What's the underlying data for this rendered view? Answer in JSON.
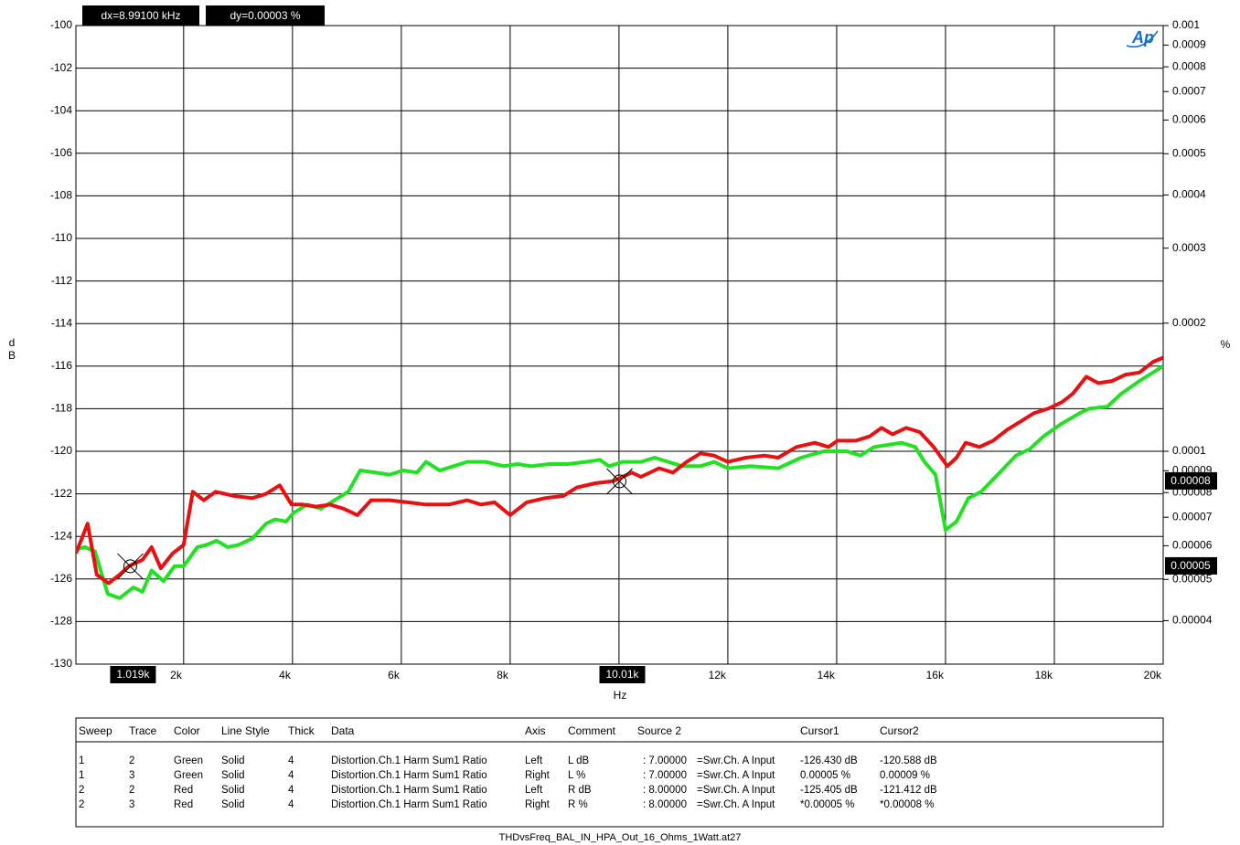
{
  "chart_data": {
    "type": "line",
    "xlabel": "Hz",
    "ylabel": "dB",
    "y2label": "%",
    "logo": "Ap",
    "xlim": [
      20,
      20000
    ],
    "ylim": [
      -130,
      -100
    ],
    "y2lim": [
      3.16228e-05,
      0.001
    ],
    "y2log": true,
    "grid": true,
    "xticks": [
      {
        "value": 2000,
        "label": "2k"
      },
      {
        "value": 4000,
        "label": "4k"
      },
      {
        "value": 6000,
        "label": "6k"
      },
      {
        "value": 8000,
        "label": "8k"
      },
      {
        "value": 10000,
        "label": "10k"
      },
      {
        "value": 12000,
        "label": "12k"
      },
      {
        "value": 14000,
        "label": "14k"
      },
      {
        "value": 16000,
        "label": "16k"
      },
      {
        "value": 18000,
        "label": "18k"
      },
      {
        "value": 20000,
        "label": "20k"
      }
    ],
    "yticks": [
      -130,
      -128,
      -126,
      -124,
      -122,
      -120,
      -118,
      -116,
      -114,
      -112,
      -110,
      -108,
      -106,
      -104,
      -102,
      -100
    ],
    "y2ticks": [
      0.001,
      0.0009,
      0.0008,
      0.0007,
      0.0006,
      0.0005,
      0.0004,
      0.0003,
      0.0002,
      0.0001,
      9e-05,
      8e-05,
      7e-05,
      6e-05,
      5e-05,
      4e-05
    ],
    "series": [
      {
        "color": "#22e022",
        "x": [
          20,
          185,
          370,
          605,
          824,
          1076,
          1244,
          1412,
          1630,
          1832,
          2000,
          2252,
          2420,
          2605,
          2807,
          3008,
          3261,
          3513,
          3681,
          3882,
          4017,
          4269,
          4521,
          4773,
          5025,
          5244,
          5529,
          5782,
          6034,
          6286,
          6454,
          6706,
          6958,
          7210,
          7546,
          7882,
          8134,
          8387,
          8723,
          9059,
          9395,
          9647,
          9815,
          10067,
          10403,
          10655,
          10908,
          11160,
          11496,
          11748,
          12000,
          12420,
          12924,
          13345,
          13765,
          14185,
          14437,
          14689,
          14941,
          15193,
          15445,
          15614,
          15815,
          16000,
          16202,
          16420,
          16656,
          16958,
          17294,
          17546,
          17798,
          18134,
          18471,
          18639,
          18975,
          19227,
          19563,
          20000
        ],
        "values": [
          -124.6,
          -124.5,
          -124.7,
          -126.7,
          -126.9,
          -126.4,
          -126.6,
          -125.6,
          -126.1,
          -125.4,
          -125.4,
          -124.5,
          -124.4,
          -124.2,
          -124.5,
          -124.4,
          -124.1,
          -123.4,
          -123.2,
          -123.3,
          -122.9,
          -122.5,
          -122.7,
          -122.3,
          -121.9,
          -120.9,
          -121.0,
          -121.1,
          -120.9,
          -121.0,
          -120.5,
          -120.9,
          -120.7,
          -120.5,
          -120.5,
          -120.7,
          -120.6,
          -120.7,
          -120.6,
          -120.6,
          -120.5,
          -120.4,
          -120.7,
          -120.5,
          -120.5,
          -120.3,
          -120.5,
          -120.7,
          -120.7,
          -120.5,
          -120.8,
          -120.7,
          -120.8,
          -120.3,
          -120.0,
          -120.0,
          -120.2,
          -119.8,
          -119.7,
          -119.6,
          -119.8,
          -120.5,
          -121.1,
          -123.7,
          -123.3,
          -122.2,
          -121.9,
          -121.1,
          -120.2,
          -119.9,
          -119.3,
          -118.7,
          -118.2,
          -118.0,
          -117.9,
          -117.3,
          -116.7,
          -116.0
        ]
      },
      {
        "color": "#e81010",
        "x": [
          20,
          235,
          403,
          622,
          824,
          992,
          1244,
          1412,
          1580,
          1798,
          2000,
          2168,
          2370,
          2588,
          2924,
          3261,
          3513,
          3765,
          3983,
          4185,
          4437,
          4689,
          4941,
          5193,
          5445,
          5782,
          6118,
          6454,
          6874,
          7210,
          7462,
          7714,
          8000,
          8303,
          8639,
          8975,
          9227,
          9563,
          9899,
          10235,
          10403,
          10739,
          10992,
          11244,
          11496,
          11748,
          12000,
          12336,
          12672,
          12924,
          13261,
          13597,
          13849,
          14017,
          14353,
          14605,
          14824,
          15025,
          15277,
          15529,
          15782,
          16034,
          16202,
          16370,
          16622,
          16874,
          17126,
          17378,
          17630,
          17882,
          18134,
          18336,
          18588,
          18807,
          19059,
          19311,
          19563,
          19815,
          20000
        ],
        "values": [
          -124.8,
          -123.4,
          -125.8,
          -126.2,
          -125.8,
          -125.4,
          -125.1,
          -124.5,
          -125.5,
          -124.8,
          -124.4,
          -121.9,
          -122.3,
          -121.9,
          -122.1,
          -122.2,
          -122.0,
          -121.6,
          -122.5,
          -122.5,
          -122.6,
          -122.5,
          -122.7,
          -123.0,
          -122.3,
          -122.3,
          -122.4,
          -122.5,
          -122.5,
          -122.3,
          -122.5,
          -122.4,
          -123.0,
          -122.4,
          -122.2,
          -122.1,
          -121.7,
          -121.5,
          -121.4,
          -121.0,
          -121.2,
          -120.8,
          -121.0,
          -120.5,
          -120.1,
          -120.2,
          -120.5,
          -120.3,
          -120.2,
          -120.3,
          -119.8,
          -119.6,
          -119.8,
          -119.5,
          -119.5,
          -119.3,
          -118.9,
          -119.2,
          -118.9,
          -119.1,
          -119.8,
          -120.7,
          -120.3,
          -119.6,
          -119.8,
          -119.5,
          -119.0,
          -118.6,
          -118.2,
          -118.0,
          -117.7,
          -117.3,
          -116.5,
          -116.8,
          -116.7,
          -116.4,
          -116.3,
          -115.8,
          -115.6
        ]
      }
    ],
    "cursor_readout": {
      "dx": "dx=8.99100 kHz",
      "dy": "dy=0.00003 %"
    },
    "cursors": [
      {
        "x": 1019,
        "x_label": "1.019k",
        "y": -125.405,
        "y2_label": "0.00005"
      },
      {
        "x": 10010,
        "x_label": "10.01k",
        "y": -121.412,
        "y2_label": "0.00008"
      }
    ]
  },
  "table": {
    "headers": [
      "Sweep",
      "Trace",
      "Color",
      "Line Style",
      "Thick",
      "Data",
      "Axis",
      "Comment",
      "Source 2",
      "Cursor1",
      "Cursor2"
    ],
    "rows": [
      [
        "1",
        "2",
        "Green",
        "Solid",
        "4",
        "Distortion.Ch.1 Harm Sum1 Ratio",
        "Left",
        "L dB",
        ": 7.00000",
        "=Swr.Ch. A Input",
        "-126.430 dB",
        "-120.588 dB"
      ],
      [
        "1",
        "3",
        "Green",
        "Solid",
        "4",
        "Distortion.Ch.1 Harm Sum1 Ratio",
        "Right",
        "L %",
        ": 7.00000",
        "=Swr.Ch. A Input",
        "0.00005  %",
        "0.00009  %"
      ],
      [
        "2",
        "2",
        "Red",
        "Solid",
        "4",
        "Distortion.Ch.1 Harm Sum1 Ratio",
        "Left",
        "R dB",
        ": 8.00000",
        "=Swr.Ch. A Input",
        "-125.405 dB",
        "-121.412 dB"
      ],
      [
        "2",
        "3",
        "Red",
        "Solid",
        "4",
        "Distortion.Ch.1 Harm Sum1 Ratio",
        "Right",
        "R %",
        ": 8.00000",
        "=Swr.Ch. A Input",
        "*0.00005  %",
        "*0.00008  %"
      ]
    ]
  },
  "footer": "THDvsFreq_BAL_IN_HPA_Out_16_Ohms_1Watt.at27"
}
